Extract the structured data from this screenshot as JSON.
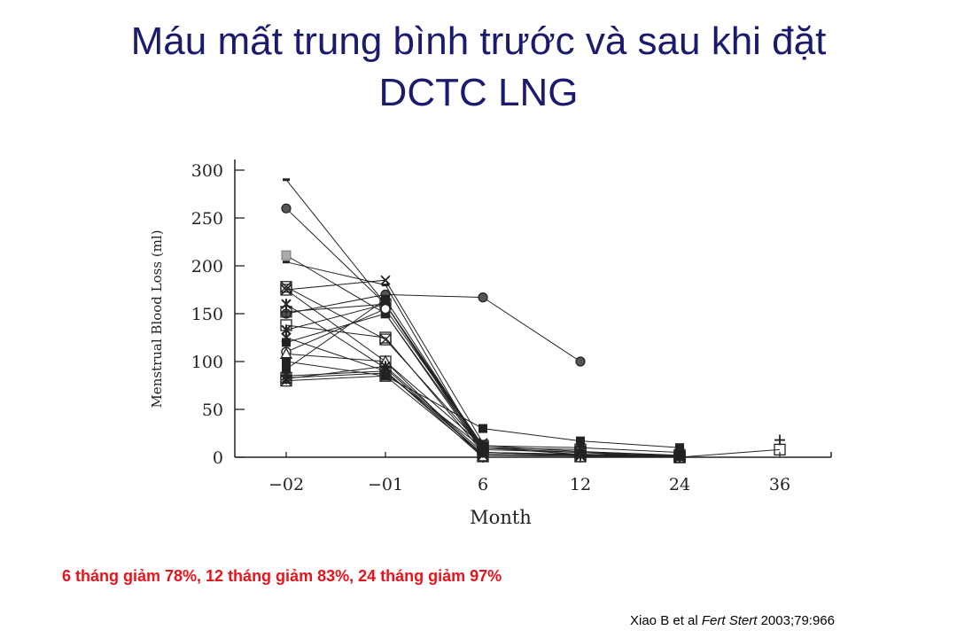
{
  "slide": {
    "title_line1": "Máu mất trung bình trước và sau khi đặt",
    "title_line2": "DCTC LNG",
    "summary": "6 tháng  giảm 78%,  12 tháng giảm 83%,  24 tháng giảm 97%",
    "citation_author": "Xiao B et al ",
    "citation_journal": "Fert Stert",
    "citation_ref": " 2003;79:966",
    "colors": {
      "title": "#1b1b6e",
      "summary": "#e8131b",
      "chart_ink": "#222222"
    }
  },
  "chart_data": {
    "type": "line",
    "title": "",
    "xlabel": "Month",
    "ylabel": "Menstrual Blood Loss (ml)",
    "categories": [
      "−02",
      "−01",
      "6",
      "12",
      "24",
      "36"
    ],
    "ylim": [
      0,
      300
    ],
    "yticks": [
      0,
      50,
      100,
      150,
      200,
      250,
      300
    ],
    "grid": false,
    "legend": "none",
    "series": [
      {
        "marker": "dash",
        "values": [
          290,
          160,
          5,
          2,
          0,
          null
        ]
      },
      {
        "marker": "circle",
        "values": [
          260,
          160,
          10,
          3,
          1,
          null
        ]
      },
      {
        "marker": "square-lt",
        "values": [
          211,
          150,
          8,
          null,
          null,
          null
        ]
      },
      {
        "marker": "dash",
        "values": [
          204,
          180,
          5,
          3,
          null,
          null
        ]
      },
      {
        "marker": "box-x",
        "values": [
          178,
          123,
          10,
          5,
          0,
          null
        ]
      },
      {
        "marker": "box",
        "values": [
          175,
          100,
          12,
          6,
          2,
          null
        ]
      },
      {
        "marker": "x",
        "values": [
          175,
          185,
          15,
          null,
          null,
          null
        ]
      },
      {
        "marker": "star",
        "values": [
          160,
          93,
          3,
          null,
          null,
          null
        ]
      },
      {
        "marker": "circle",
        "values": [
          150,
          170,
          167,
          100,
          null,
          null
        ]
      },
      {
        "marker": "box-plus",
        "values": [
          152,
          160,
          8,
          5,
          2,
          null
        ]
      },
      {
        "marker": "box",
        "values": [
          138,
          125,
          5,
          3,
          0,
          null
        ]
      },
      {
        "marker": "star",
        "values": [
          133,
          160,
          12,
          10,
          5,
          null
        ]
      },
      {
        "marker": "star",
        "values": [
          125,
          90,
          0,
          0,
          0,
          null
        ]
      },
      {
        "marker": "square",
        "values": [
          120,
          150,
          5,
          3,
          2,
          null
        ]
      },
      {
        "marker": "circle-o",
        "values": [
          110,
          155,
          10,
          null,
          null,
          null
        ]
      },
      {
        "marker": "triangle",
        "values": [
          108,
          100,
          0,
          0,
          null,
          null
        ]
      },
      {
        "marker": "square",
        "values": [
          100,
          85,
          30,
          17,
          10,
          null
        ]
      },
      {
        "marker": "square",
        "values": [
          92,
          165,
          10,
          null,
          null,
          null
        ]
      },
      {
        "marker": "x",
        "values": [
          85,
          90,
          3,
          2,
          1,
          null
        ]
      },
      {
        "marker": "box",
        "values": [
          83,
          88,
          10,
          8,
          null,
          null
        ]
      },
      {
        "marker": "star",
        "values": [
          82,
          95,
          5,
          2,
          1,
          null
        ]
      },
      {
        "marker": "box-x",
        "values": [
          80,
          85,
          2,
          1,
          0,
          null
        ]
      },
      {
        "marker": "box",
        "values": [
          null,
          null,
          null,
          null,
          0,
          8
        ]
      },
      {
        "marker": "plus",
        "values": [
          null,
          null,
          null,
          null,
          null,
          18
        ]
      }
    ]
  }
}
